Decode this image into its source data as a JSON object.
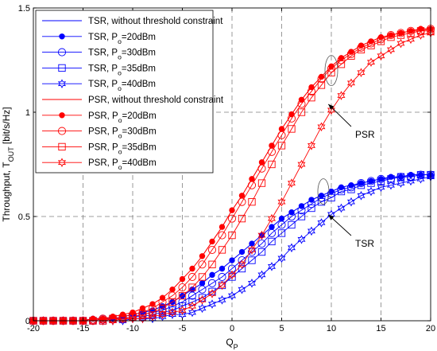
{
  "chart_data": {
    "type": "line",
    "title": "",
    "xlabel": "Q_P",
    "ylabel": "Throughput, T_OUT [bit/s/Hz]",
    "xlim": [
      -20,
      20
    ],
    "ylim": [
      0,
      1.5
    ],
    "xticks": [
      "-20",
      "-15",
      "-10",
      "-5",
      "0",
      "5",
      "10",
      "15",
      "20"
    ],
    "yticks": [
      "0",
      "0.5",
      "1",
      "1.5"
    ],
    "grid": true,
    "legend_position": "top-left",
    "x": [
      -20,
      -19,
      -18,
      -17,
      -16,
      -15,
      -14,
      -13,
      -12,
      -11,
      -10,
      -9,
      -8,
      -7,
      -6,
      -5,
      -4,
      -3,
      -2,
      -1,
      0,
      1,
      2,
      3,
      4,
      5,
      6,
      7,
      8,
      9,
      10,
      11,
      12,
      13,
      14,
      15,
      16,
      17,
      18,
      19,
      20
    ],
    "series": [
      {
        "name": "TSR, without threshold constraint",
        "color": "#0000ff",
        "marker": "none",
        "values": [
          0.0,
          0.0,
          0.0,
          0.0,
          0.0,
          0.0,
          0.01,
          0.01,
          0.01,
          0.02,
          0.03,
          0.04,
          0.05,
          0.07,
          0.09,
          0.12,
          0.15,
          0.18,
          0.22,
          0.25,
          0.29,
          0.33,
          0.37,
          0.41,
          0.45,
          0.49,
          0.52,
          0.55,
          0.58,
          0.6,
          0.62,
          0.64,
          0.65,
          0.66,
          0.67,
          0.68,
          0.69,
          0.69,
          0.7,
          0.7,
          0.7
        ]
      },
      {
        "name": "TSR, P_o=20dBm",
        "color": "#0000ff",
        "marker": "filled-circle",
        "values": [
          0.0,
          0.0,
          0.0,
          0.0,
          0.0,
          0.0,
          0.01,
          0.01,
          0.01,
          0.02,
          0.03,
          0.04,
          0.05,
          0.07,
          0.09,
          0.12,
          0.15,
          0.18,
          0.22,
          0.25,
          0.29,
          0.33,
          0.37,
          0.41,
          0.45,
          0.49,
          0.52,
          0.55,
          0.58,
          0.6,
          0.62,
          0.64,
          0.65,
          0.66,
          0.67,
          0.68,
          0.69,
          0.69,
          0.7,
          0.7,
          0.7
        ]
      },
      {
        "name": "TSR, P_o=30dBm",
        "color": "#0000ff",
        "marker": "circle",
        "values": [
          0.0,
          0.0,
          0.0,
          0.0,
          0.0,
          0.0,
          0.0,
          0.01,
          0.01,
          0.01,
          0.02,
          0.03,
          0.04,
          0.05,
          0.07,
          0.09,
          0.12,
          0.15,
          0.18,
          0.21,
          0.25,
          0.29,
          0.33,
          0.37,
          0.42,
          0.46,
          0.5,
          0.53,
          0.56,
          0.59,
          0.61,
          0.63,
          0.64,
          0.66,
          0.67,
          0.68,
          0.68,
          0.69,
          0.69,
          0.7,
          0.7
        ]
      },
      {
        "name": "TSR, P_o=35dBm",
        "color": "#0000ff",
        "marker": "square",
        "values": [
          0.0,
          0.0,
          0.0,
          0.0,
          0.0,
          0.0,
          0.0,
          0.0,
          0.01,
          0.01,
          0.02,
          0.02,
          0.03,
          0.04,
          0.05,
          0.07,
          0.09,
          0.11,
          0.14,
          0.17,
          0.21,
          0.25,
          0.29,
          0.33,
          0.38,
          0.42,
          0.46,
          0.5,
          0.54,
          0.57,
          0.59,
          0.62,
          0.63,
          0.65,
          0.66,
          0.67,
          0.68,
          0.69,
          0.69,
          0.7,
          0.7
        ]
      },
      {
        "name": "TSR, P_o=40dBm",
        "color": "#0000ff",
        "marker": "hexagram",
        "values": [
          0.0,
          0.0,
          0.0,
          0.0,
          0.0,
          0.0,
          0.0,
          0.0,
          0.0,
          0.0,
          0.01,
          0.01,
          0.01,
          0.02,
          0.03,
          0.03,
          0.04,
          0.06,
          0.08,
          0.1,
          0.12,
          0.15,
          0.18,
          0.22,
          0.26,
          0.3,
          0.35,
          0.39,
          0.43,
          0.47,
          0.51,
          0.54,
          0.57,
          0.6,
          0.62,
          0.64,
          0.65,
          0.66,
          0.67,
          0.68,
          0.69
        ]
      },
      {
        "name": "PSR, without threshold constraint",
        "color": "#ff0000",
        "marker": "none",
        "values": [
          0.0,
          0.0,
          0.0,
          0.0,
          0.0,
          0.0,
          0.01,
          0.01,
          0.02,
          0.03,
          0.04,
          0.06,
          0.08,
          0.11,
          0.15,
          0.2,
          0.25,
          0.31,
          0.38,
          0.45,
          0.53,
          0.6,
          0.68,
          0.76,
          0.84,
          0.92,
          0.99,
          1.06,
          1.12,
          1.17,
          1.22,
          1.26,
          1.29,
          1.32,
          1.34,
          1.36,
          1.37,
          1.38,
          1.39,
          1.4,
          1.4
        ]
      },
      {
        "name": "PSR, P_o=20dBm",
        "color": "#ff0000",
        "marker": "filled-circle",
        "values": [
          0.0,
          0.0,
          0.0,
          0.0,
          0.0,
          0.0,
          0.01,
          0.01,
          0.02,
          0.03,
          0.04,
          0.06,
          0.08,
          0.11,
          0.15,
          0.2,
          0.25,
          0.31,
          0.38,
          0.45,
          0.53,
          0.6,
          0.68,
          0.76,
          0.84,
          0.92,
          0.99,
          1.06,
          1.12,
          1.17,
          1.22,
          1.26,
          1.29,
          1.32,
          1.34,
          1.36,
          1.37,
          1.38,
          1.39,
          1.4,
          1.4
        ]
      },
      {
        "name": "PSR, P_o=30dBm",
        "color": "#ff0000",
        "marker": "circle",
        "values": [
          0.0,
          0.0,
          0.0,
          0.0,
          0.0,
          0.0,
          0.0,
          0.01,
          0.01,
          0.02,
          0.03,
          0.04,
          0.06,
          0.09,
          0.12,
          0.16,
          0.21,
          0.27,
          0.34,
          0.41,
          0.49,
          0.57,
          0.65,
          0.73,
          0.81,
          0.89,
          0.97,
          1.04,
          1.1,
          1.16,
          1.21,
          1.25,
          1.28,
          1.31,
          1.33,
          1.35,
          1.37,
          1.38,
          1.39,
          1.39,
          1.4
        ]
      },
      {
        "name": "PSR, P_o=35dBm",
        "color": "#ff0000",
        "marker": "square",
        "values": [
          0.0,
          0.0,
          0.0,
          0.0,
          0.0,
          0.0,
          0.0,
          0.0,
          0.01,
          0.01,
          0.02,
          0.03,
          0.04,
          0.06,
          0.09,
          0.12,
          0.16,
          0.21,
          0.27,
          0.34,
          0.41,
          0.49,
          0.57,
          0.66,
          0.75,
          0.84,
          0.92,
          1.0,
          1.07,
          1.13,
          1.19,
          1.23,
          1.27,
          1.3,
          1.32,
          1.34,
          1.36,
          1.37,
          1.38,
          1.39,
          1.39
        ]
      },
      {
        "name": "PSR, P_o=40dBm",
        "color": "#ff0000",
        "marker": "hexagram",
        "values": [
          0.0,
          0.0,
          0.0,
          0.0,
          0.0,
          0.0,
          0.0,
          0.0,
          0.0,
          0.01,
          0.01,
          0.01,
          0.02,
          0.03,
          0.04,
          0.05,
          0.07,
          0.1,
          0.13,
          0.17,
          0.22,
          0.27,
          0.34,
          0.41,
          0.49,
          0.57,
          0.66,
          0.75,
          0.84,
          0.93,
          1.01,
          1.08,
          1.14,
          1.19,
          1.24,
          1.27,
          1.3,
          1.33,
          1.35,
          1.37,
          1.38
        ]
      }
    ],
    "annotations": [
      {
        "text": "PSR",
        "target": [
          9.3,
          1.05
        ],
        "series": "PSR"
      },
      {
        "text": "TSR",
        "target": [
          9.3,
          0.52
        ],
        "series": "TSR"
      }
    ]
  }
}
